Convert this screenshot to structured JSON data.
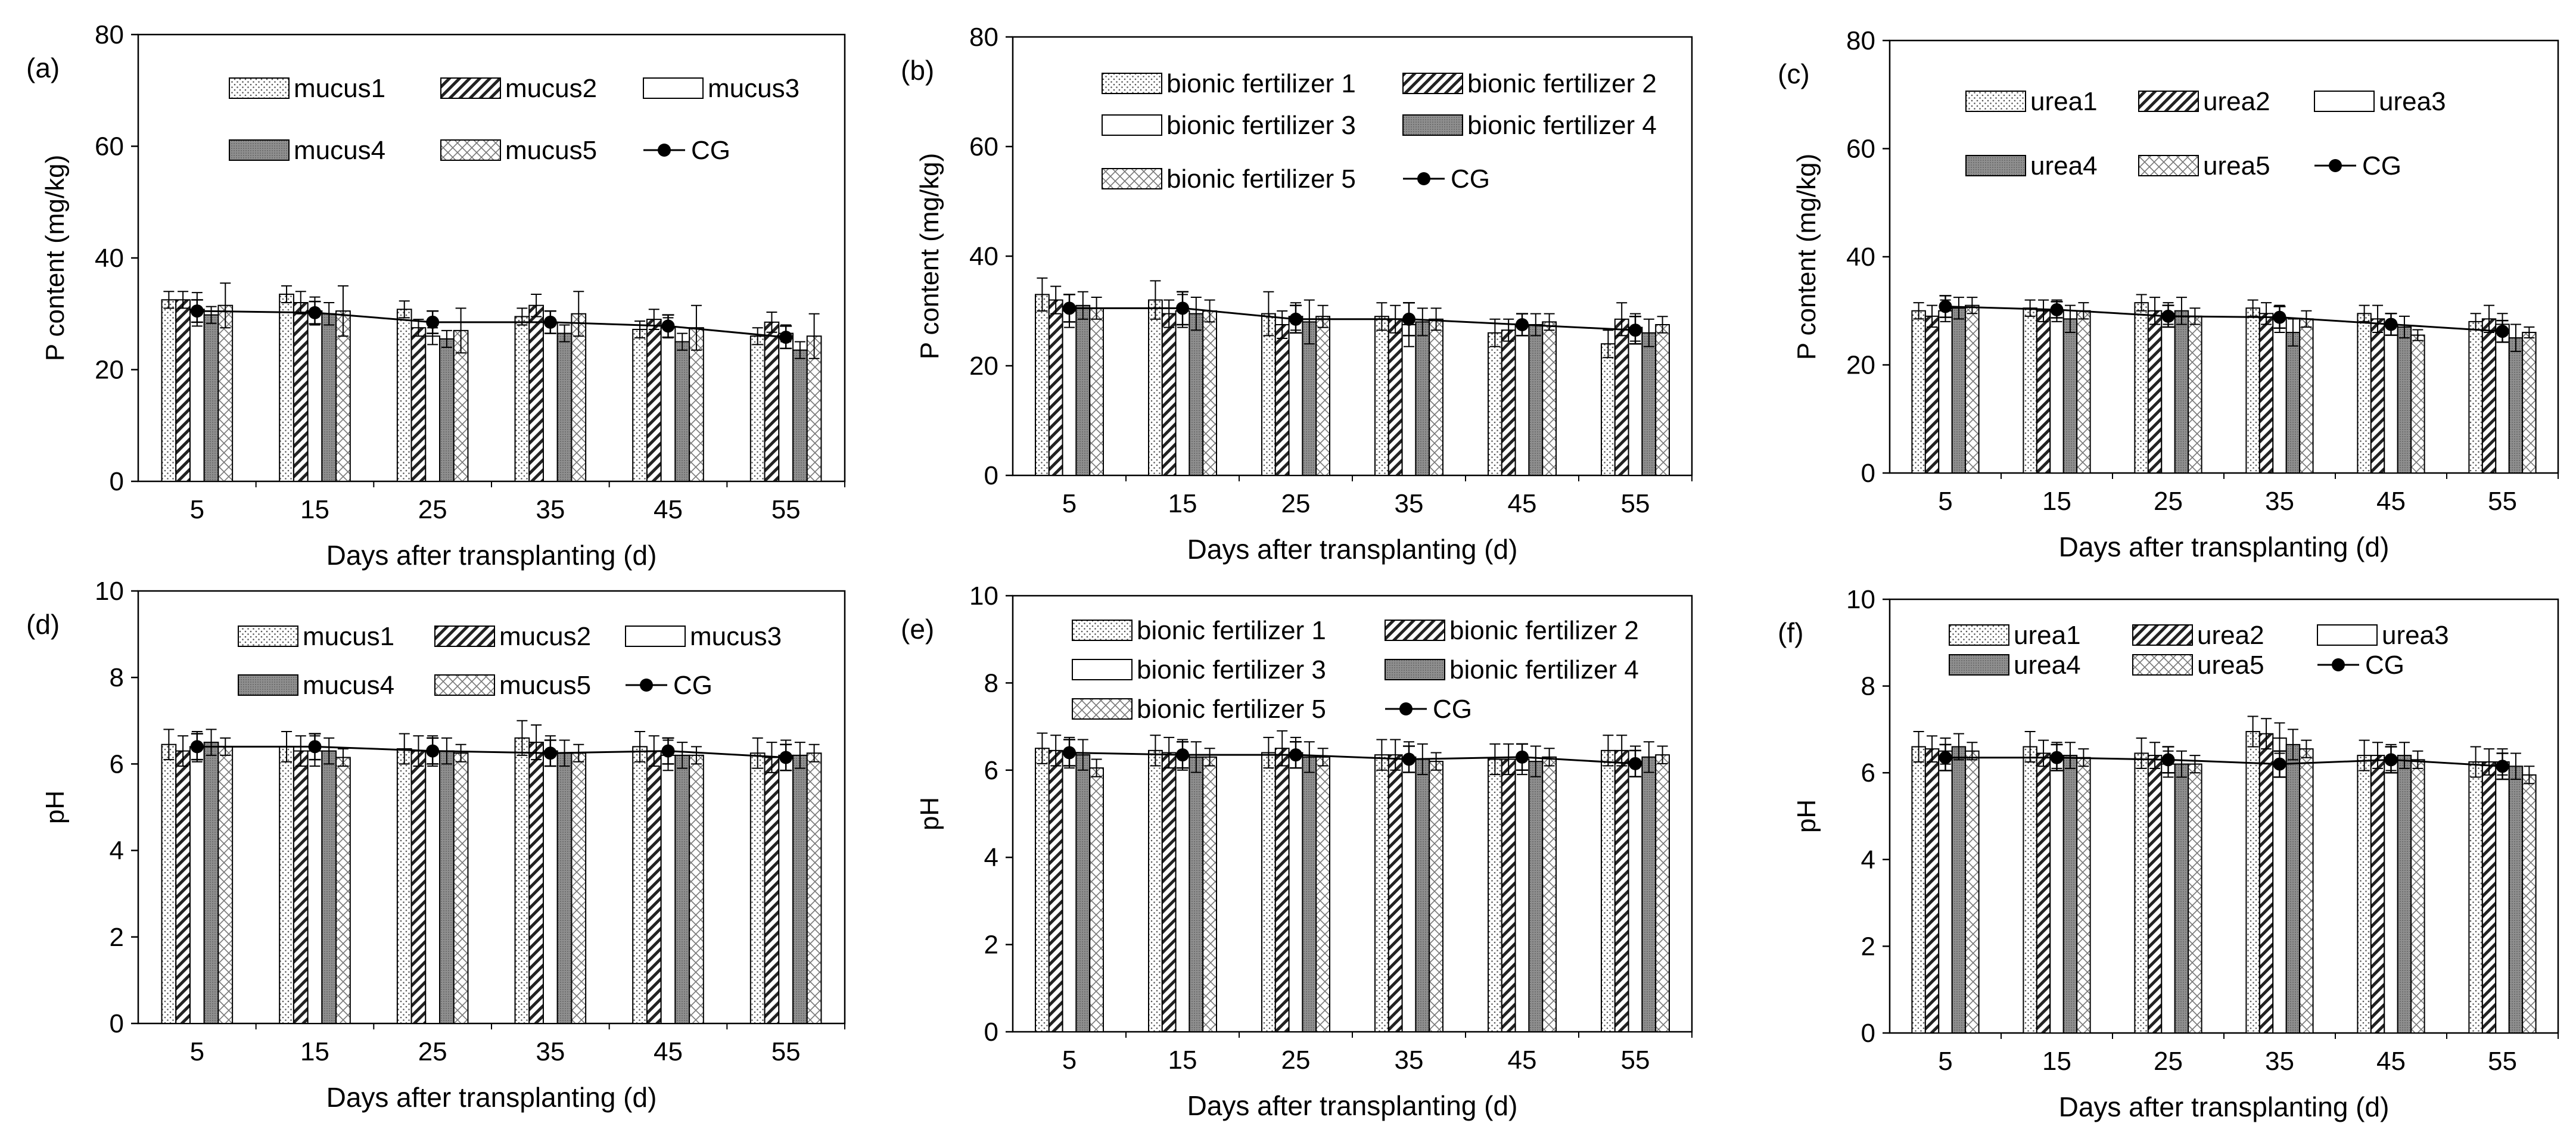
{
  "chart_data": [
    {
      "panel_label": "(a)",
      "type": "bar",
      "xlabel": "Days after transplanting (d)",
      "ylabel": "P content (mg/kg)",
      "ylim": [
        0,
        80
      ],
      "yticks": [
        0,
        20,
        40,
        60,
        80
      ],
      "categories": [
        "5",
        "15",
        "25",
        "35",
        "45",
        "55"
      ],
      "series": [
        {
          "name": "mucus1",
          "pattern": "dots",
          "values": [
            32.5,
            33.5,
            30.8,
            29.5,
            27.2,
            26.0
          ],
          "errors": [
            1.5,
            1.5,
            1.5,
            1.5,
            1.5,
            1.5
          ]
        },
        {
          "name": "mucus2",
          "pattern": "hatch",
          "values": [
            32.5,
            32.0,
            27.5,
            31.5,
            29.0,
            28.5
          ],
          "errors": [
            1.5,
            2.0,
            1.5,
            2.0,
            1.8,
            1.8
          ]
        },
        {
          "name": "mucus3",
          "pattern": "blank",
          "values": [
            30.8,
            30.5,
            26.0,
            28.5,
            27.5,
            26.5
          ],
          "errors": [
            3.0,
            2.5,
            1.5,
            2.0,
            1.8,
            1.5
          ]
        },
        {
          "name": "mucus4",
          "pattern": "dense",
          "values": [
            29.8,
            30.0,
            25.5,
            26.5,
            25.0,
            23.5
          ],
          "errors": [
            1.5,
            2.0,
            1.5,
            1.5,
            1.5,
            1.5
          ]
        },
        {
          "name": "mucus5",
          "pattern": "cross",
          "values": [
            31.5,
            30.5,
            27.0,
            30.0,
            27.5,
            26.0
          ],
          "errors": [
            4.0,
            4.5,
            4.0,
            4.0,
            4.0,
            4.0
          ]
        }
      ],
      "line": {
        "name": "CG",
        "values": [
          30.5,
          30.2,
          28.5,
          28.5,
          27.8,
          25.8
        ],
        "errors": [
          2.0,
          2.0,
          2.0,
          2.0,
          2.0,
          2.0
        ]
      },
      "legend_rows": [
        [
          "mucus1",
          "mucus2",
          "mucus3"
        ],
        [
          "mucus4",
          "mucus5",
          "CG"
        ]
      ]
    },
    {
      "panel_label": "(b)",
      "type": "bar",
      "xlabel": "Days after transplanting (d)",
      "ylabel": "P content (mg/kg)",
      "ylim": [
        0,
        80
      ],
      "yticks": [
        0,
        20,
        40,
        60,
        80
      ],
      "categories": [
        "5",
        "15",
        "25",
        "35",
        "45",
        "55"
      ],
      "series": [
        {
          "name": "bionic fertilizer 1",
          "pattern": "dots",
          "values": [
            33.0,
            32.0,
            29.5,
            29.0,
            26.0,
            24.0
          ],
          "errors": [
            3.0,
            3.5,
            4.0,
            2.5,
            2.5,
            2.5
          ]
        },
        {
          "name": "bionic fertilizer 2",
          "pattern": "hatch",
          "values": [
            32.0,
            29.5,
            27.5,
            28.5,
            26.5,
            28.5
          ],
          "errors": [
            2.5,
            2.5,
            2.5,
            2.5,
            2.0,
            3.0
          ]
        },
        {
          "name": "bionic fertilizer 3",
          "pattern": "blank",
          "values": [
            30.0,
            30.0,
            29.0,
            27.5,
            27.5,
            27.0
          ],
          "errors": [
            3.0,
            3.0,
            2.5,
            4.0,
            2.0,
            2.5
          ]
        },
        {
          "name": "bionic fertilizer 4",
          "pattern": "dense",
          "values": [
            31.0,
            29.5,
            28.0,
            28.0,
            27.5,
            26.0
          ],
          "errors": [
            2.5,
            3.0,
            4.0,
            2.5,
            2.0,
            2.5
          ]
        },
        {
          "name": "bionic fertilizer 5",
          "pattern": "cross",
          "values": [
            30.5,
            30.0,
            29.0,
            28.5,
            28.0,
            27.5
          ],
          "errors": [
            2.0,
            2.0,
            2.0,
            2.0,
            1.5,
            1.5
          ]
        }
      ],
      "line": {
        "name": "CG",
        "values": [
          30.5,
          30.5,
          28.5,
          28.5,
          27.5,
          26.5
        ],
        "errors": [
          2.5,
          3.0,
          2.5,
          3.0,
          2.0,
          2.5
        ]
      },
      "legend_rows": [
        [
          "bionic fertilizer 1",
          "bionic fertilizer 2"
        ],
        [
          "bionic fertilizer 3",
          "bionic fertilizer 4"
        ],
        [
          "bionic fertilizer 5",
          "CG"
        ]
      ]
    },
    {
      "panel_label": "(c)",
      "type": "bar",
      "xlabel": "Days after transplanting (d)",
      "ylabel": "P content (mg/kg)",
      "ylim": [
        0,
        80
      ],
      "yticks": [
        0,
        20,
        40,
        60,
        80
      ],
      "categories": [
        "5",
        "15",
        "25",
        "35",
        "45",
        "55"
      ],
      "series": [
        {
          "name": "urea1",
          "pattern": "dots",
          "values": [
            30.0,
            30.5,
            31.5,
            30.5,
            29.5,
            28.0
          ],
          "errors": [
            1.5,
            1.5,
            1.5,
            1.5,
            1.5,
            1.5
          ]
        },
        {
          "name": "urea2",
          "pattern": "hatch",
          "values": [
            29.0,
            30.0,
            30.0,
            29.5,
            28.5,
            28.5
          ],
          "errors": [
            2.0,
            2.0,
            2.5,
            2.0,
            2.5,
            2.5
          ]
        },
        {
          "name": "urea3",
          "pattern": "blank",
          "values": [
            30.0,
            30.0,
            29.5,
            28.5,
            27.5,
            27.5
          ],
          "errors": [
            2.0,
            2.0,
            2.0,
            2.5,
            2.0,
            2.0
          ]
        },
        {
          "name": "urea4",
          "pattern": "dense",
          "values": [
            30.5,
            28.5,
            30.0,
            26.0,
            27.0,
            25.0
          ],
          "errors": [
            2.0,
            2.5,
            2.5,
            2.5,
            2.0,
            2.5
          ]
        },
        {
          "name": "urea5",
          "pattern": "cross",
          "values": [
            31.0,
            30.0,
            29.0,
            28.5,
            25.5,
            26.0
          ],
          "errors": [
            1.5,
            1.5,
            1.5,
            1.5,
            1.0,
            1.0
          ]
        }
      ],
      "line": {
        "name": "CG",
        "values": [
          30.8,
          30.2,
          29.0,
          28.8,
          27.5,
          26.2
        ],
        "errors": [
          2.0,
          1.5,
          2.0,
          2.0,
          2.0,
          2.0
        ]
      },
      "legend_rows": [
        [
          "urea1",
          "urea2",
          "urea3"
        ],
        [
          "urea4",
          "urea5",
          "CG"
        ]
      ]
    },
    {
      "panel_label": "(d)",
      "type": "bar",
      "xlabel": "Days after transplanting (d)",
      "ylabel": "pH",
      "ylim": [
        0,
        10
      ],
      "yticks": [
        0,
        2,
        4,
        6,
        8,
        10
      ],
      "categories": [
        "5",
        "15",
        "25",
        "35",
        "45",
        "55"
      ],
      "series": [
        {
          "name": "mucus1",
          "pattern": "dots",
          "values": [
            6.45,
            6.4,
            6.35,
            6.6,
            6.4,
            6.25
          ],
          "errors": [
            0.35,
            0.35,
            0.35,
            0.4,
            0.35,
            0.35
          ]
        },
        {
          "name": "mucus2",
          "pattern": "hatch",
          "values": [
            6.3,
            6.3,
            6.3,
            6.5,
            6.3,
            6.15
          ],
          "errors": [
            0.35,
            0.35,
            0.35,
            0.4,
            0.35,
            0.35
          ]
        },
        {
          "name": "mucus3",
          "pattern": "blank",
          "values": [
            6.4,
            6.3,
            6.3,
            6.3,
            6.2,
            6.2
          ],
          "errors": [
            0.35,
            0.35,
            0.35,
            0.35,
            0.35,
            0.35
          ]
        },
        {
          "name": "mucus4",
          "pattern": "dense",
          "values": [
            6.5,
            6.3,
            6.3,
            6.25,
            6.2,
            6.2
          ],
          "errors": [
            0.3,
            0.3,
            0.3,
            0.3,
            0.3,
            0.3
          ]
        },
        {
          "name": "mucus5",
          "pattern": "cross",
          "values": [
            6.4,
            6.15,
            6.25,
            6.25,
            6.2,
            6.25
          ],
          "errors": [
            0.2,
            0.2,
            0.2,
            0.2,
            0.2,
            0.2
          ]
        }
      ],
      "line": {
        "name": "CG",
        "values": [
          6.4,
          6.4,
          6.3,
          6.25,
          6.3,
          6.15
        ],
        "errors": [
          0.3,
          0.3,
          0.3,
          0.3,
          0.3,
          0.3
        ]
      },
      "legend_rows": [
        [
          "mucus1",
          "mucus2",
          "mucus3"
        ],
        [
          "mucus4",
          "mucus5",
          "CG"
        ]
      ]
    },
    {
      "panel_label": "(e)",
      "type": "bar",
      "xlabel": "Days after transplanting (d)",
      "ylabel": "pH",
      "ylim": [
        0,
        10
      ],
      "yticks": [
        0,
        2,
        4,
        6,
        8,
        10
      ],
      "categories": [
        "5",
        "15",
        "25",
        "35",
        "45",
        "55"
      ],
      "series": [
        {
          "name": "bionic fertilizer 1",
          "pattern": "dots",
          "values": [
            6.5,
            6.45,
            6.4,
            6.35,
            6.25,
            6.45
          ],
          "errors": [
            0.35,
            0.35,
            0.35,
            0.35,
            0.35,
            0.35
          ]
        },
        {
          "name": "bionic fertilizer 2",
          "pattern": "hatch",
          "values": [
            6.45,
            6.4,
            6.5,
            6.35,
            6.25,
            6.45
          ],
          "errors": [
            0.35,
            0.35,
            0.4,
            0.35,
            0.35,
            0.35
          ]
        },
        {
          "name": "bionic fertilizer 3",
          "pattern": "blank",
          "values": [
            6.4,
            6.35,
            6.4,
            6.3,
            6.25,
            6.2
          ],
          "errors": [
            0.35,
            0.35,
            0.35,
            0.35,
            0.35,
            0.35
          ]
        },
        {
          "name": "bionic fertilizer 4",
          "pattern": "dense",
          "values": [
            6.35,
            6.3,
            6.3,
            6.25,
            6.2,
            6.3
          ],
          "errors": [
            0.35,
            0.35,
            0.35,
            0.35,
            0.35,
            0.35
          ]
        },
        {
          "name": "bionic fertilizer 5",
          "pattern": "cross",
          "values": [
            6.05,
            6.3,
            6.3,
            6.2,
            6.3,
            6.35
          ],
          "errors": [
            0.2,
            0.2,
            0.2,
            0.2,
            0.2,
            0.2
          ]
        }
      ],
      "line": {
        "name": "CG",
        "values": [
          6.4,
          6.35,
          6.35,
          6.25,
          6.3,
          6.15
        ],
        "errors": [
          0.3,
          0.3,
          0.3,
          0.3,
          0.3,
          0.3
        ]
      },
      "legend_rows": [
        [
          "bionic fertilizer 1",
          "bionic fertilizer 2"
        ],
        [
          "bionic fertilizer 3",
          "bionic fertilizer 4"
        ],
        [
          "bionic fertilizer 5",
          "CG"
        ]
      ]
    },
    {
      "panel_label": "(f)",
      "type": "bar",
      "xlabel": "Days after transplanting (d)",
      "ylabel": "pH",
      "ylim": [
        0,
        10
      ],
      "yticks": [
        0,
        2,
        4,
        6,
        8,
        10
      ],
      "categories": [
        "5",
        "15",
        "25",
        "35",
        "45",
        "55"
      ],
      "series": [
        {
          "name": "urea1",
          "pattern": "dots",
          "values": [
            6.6,
            6.6,
            6.45,
            6.95,
            6.4,
            6.25
          ],
          "errors": [
            0.35,
            0.35,
            0.35,
            0.35,
            0.35,
            0.35
          ]
        },
        {
          "name": "urea2",
          "pattern": "hatch",
          "values": [
            6.55,
            6.45,
            6.4,
            6.9,
            6.4,
            6.25
          ],
          "errors": [
            0.3,
            0.3,
            0.3,
            0.35,
            0.3,
            0.3
          ]
        },
        {
          "name": "urea3",
          "pattern": "blank",
          "values": [
            6.5,
            6.4,
            6.2,
            6.8,
            6.35,
            6.25
          ],
          "errors": [
            0.3,
            0.3,
            0.3,
            0.35,
            0.3,
            0.3
          ]
        },
        {
          "name": "urea4",
          "pattern": "dense",
          "values": [
            6.6,
            6.4,
            6.2,
            6.65,
            6.4,
            6.15
          ],
          "errors": [
            0.3,
            0.3,
            0.3,
            0.35,
            0.3,
            0.3
          ]
        },
        {
          "name": "urea5",
          "pattern": "cross",
          "values": [
            6.5,
            6.35,
            6.2,
            6.55,
            6.3,
            5.95
          ],
          "errors": [
            0.2,
            0.2,
            0.2,
            0.2,
            0.2,
            0.2
          ]
        }
      ],
      "line": {
        "name": "CG",
        "values": [
          6.35,
          6.35,
          6.3,
          6.2,
          6.3,
          6.15
        ],
        "errors": [
          0.3,
          0.3,
          0.3,
          0.3,
          0.3,
          0.3
        ]
      },
      "legend_rows": [
        [
          "urea1",
          "urea2",
          "urea3"
        ],
        [
          "urea4",
          "urea5",
          "CG"
        ]
      ]
    }
  ]
}
